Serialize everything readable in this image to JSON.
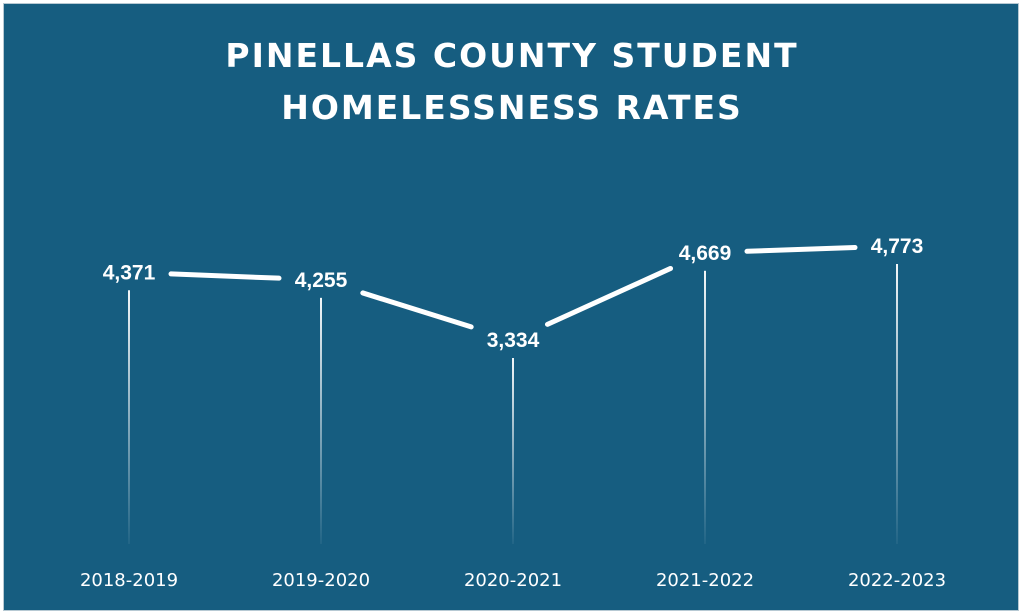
{
  "chart_data": {
    "type": "line",
    "title_lines": [
      "PINELLAS COUNTY STUDENT",
      "HOMELESSNESS RATES"
    ],
    "categories": [
      "2018-2019",
      "2019-2020",
      "2020-2021",
      "2021-2022",
      "2022-2023"
    ],
    "series": [
      {
        "values": [
          4371,
          4255,
          3334,
          4669,
          4773
        ],
        "labels": [
          "4,371",
          "4,255",
          "3,334",
          "4,669",
          "4,773"
        ]
      }
    ],
    "xlabel": "",
    "ylabel": "",
    "ylim": [
      0,
      5500
    ],
    "grid": false,
    "legend": "none",
    "axis_visible": false
  },
  "colors": {
    "background": "#165d80",
    "line": "#ffffff",
    "text": "#ffffff",
    "drop_line": "#ffffff"
  }
}
